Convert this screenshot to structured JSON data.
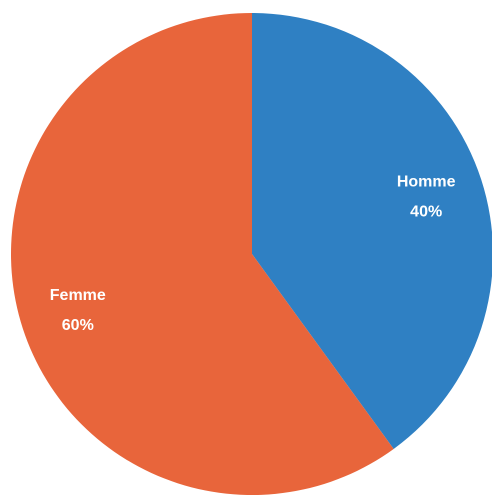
{
  "chart_data": {
    "type": "pie",
    "categories": [
      "Homme",
      "Femme"
    ],
    "values": [
      40,
      60
    ],
    "value_labels": [
      "40%",
      "60%"
    ],
    "colors": [
      "#2f80c3",
      "#e8653b"
    ]
  }
}
